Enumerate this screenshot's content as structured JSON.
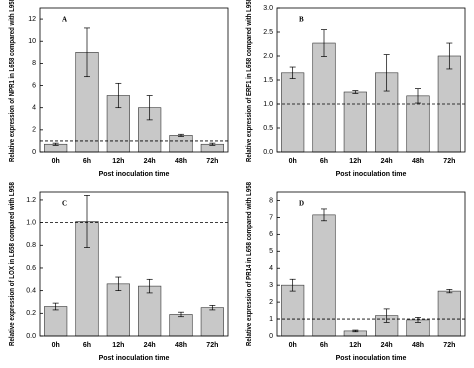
{
  "chart_data": [
    {
      "type": "bar",
      "panel_label": "A",
      "ylabel": "Relative expression of NPR1 in L658 compared with L958",
      "xlabel": "Post inoculation time",
      "categories": [
        "0h",
        "6h",
        "12h",
        "24h",
        "48h",
        "72h"
      ],
      "values": [
        0.7,
        9.0,
        5.1,
        4.0,
        1.5,
        0.7
      ],
      "errors": [
        0.1,
        2.2,
        1.1,
        1.1,
        0.1,
        0.1
      ],
      "color": "#c8c8c8",
      "reference_line": 1,
      "ylim": [
        0,
        13
      ],
      "yticks": [
        0,
        2,
        4,
        6,
        8,
        10,
        12
      ]
    },
    {
      "type": "bar",
      "panel_label": "B",
      "ylabel": "Relative expression of ERF1 in L658 compared with L958",
      "xlabel": "Post inoculation time",
      "categories": [
        "0h",
        "6h",
        "12h",
        "24h",
        "48h",
        "72h"
      ],
      "values": [
        1.65,
        2.27,
        1.25,
        1.65,
        1.17,
        2.0
      ],
      "errors": [
        0.12,
        0.28,
        0.03,
        0.38,
        0.15,
        0.27
      ],
      "color": "#c8c8c8",
      "reference_line": 1,
      "ylim": [
        0,
        3.0
      ],
      "yticks": [
        {
          "value": 0,
          "label": "0.0"
        },
        0.5,
        {
          "value": 1,
          "label": "1.0"
        },
        1.5,
        {
          "value": 2,
          "label": "2.0"
        },
        2.5,
        {
          "value": 3,
          "label": "3.0"
        }
      ]
    },
    {
      "type": "bar",
      "panel_label": "C",
      "ylabel": "Relative expression of LOX in L658 compared with L958",
      "xlabel": "Post inoculation time",
      "categories": [
        "0h",
        "6h",
        "12h",
        "24h",
        "48h",
        "72h"
      ],
      "values": [
        0.26,
        1.01,
        0.46,
        0.44,
        0.19,
        0.25
      ],
      "errors": [
        0.03,
        0.23,
        0.06,
        0.06,
        0.02,
        0.02
      ],
      "color": "#c8c8c8",
      "reference_line": 1,
      "ylim": [
        0,
        1.27
      ],
      "yticks": [
        {
          "value": 0,
          "label": "0.0"
        },
        0.2,
        0.4,
        0.6,
        0.8,
        {
          "value": 1,
          "label": "1.0"
        },
        1.2
      ]
    },
    {
      "type": "bar",
      "panel_label": "D",
      "ylabel": "Relative expression of PR14 in L658 compared with L958",
      "xlabel": "Post inoculation time",
      "categories": [
        "0h",
        "6h",
        "12h",
        "24h",
        "48h",
        "72h"
      ],
      "values": [
        3.0,
        7.15,
        0.3,
        1.2,
        0.95,
        2.65
      ],
      "errors": [
        0.35,
        0.35,
        0.05,
        0.4,
        0.15,
        0.1
      ],
      "color": "#c8c8c8",
      "reference_line": 1,
      "ylim": [
        0,
        8.5
      ],
      "yticks": [
        0,
        1,
        2,
        3,
        4,
        5,
        6,
        7,
        8
      ]
    }
  ]
}
